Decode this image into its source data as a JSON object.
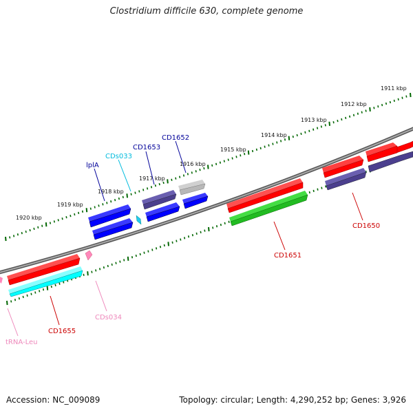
{
  "title": "Clostridium difficile 630, complete genome",
  "footer": {
    "accession": "Accession: NC_009089",
    "stats": "Topology: circular; Length: 4,290,252 bp; Genes: 3,926"
  },
  "ruler": {
    "labels": [
      "1911 kbp",
      "1912 kbp",
      "1913 kbp",
      "1914 kbp",
      "1915 kbp",
      "1916 kbp",
      "1917 kbp",
      "1918 kbp",
      "1919 kbp",
      "1920 kbp"
    ]
  },
  "genes": [
    {
      "name": "CD1650",
      "color": "#cc0000",
      "fill": "#ff0000"
    },
    {
      "name": "CD1651",
      "color": "#cc0000",
      "fill": "#ff0000"
    },
    {
      "name": "CD1652",
      "color": "#000099",
      "fill": "#0000ff"
    },
    {
      "name": "CD1653",
      "color": "#000099",
      "fill": "#4b3f8e"
    },
    {
      "name": "CDs033",
      "color": "#00bbdd",
      "fill": "#22ccee"
    },
    {
      "name": "lplA",
      "color": "#000099",
      "fill": "#0000ff"
    },
    {
      "name": "CDs034",
      "color": "#ee88bb",
      "fill": "#ff88bb"
    },
    {
      "name": "CD1655",
      "color": "#cc0000",
      "fill": "#ff0000"
    },
    {
      "name": "tRNA-Leu",
      "color": "#ee88bb",
      "fill": "#ff88bb"
    }
  ],
  "colors": {
    "backbone": "#777777",
    "ticks": "#006600",
    "red": "#ff0000",
    "green": "#22bb22",
    "blue": "#0000ff",
    "purple": "#4b3f8e",
    "cyan": "#00ffff",
    "gray": "#b8b8b8",
    "pink": "#ff88bb"
  }
}
